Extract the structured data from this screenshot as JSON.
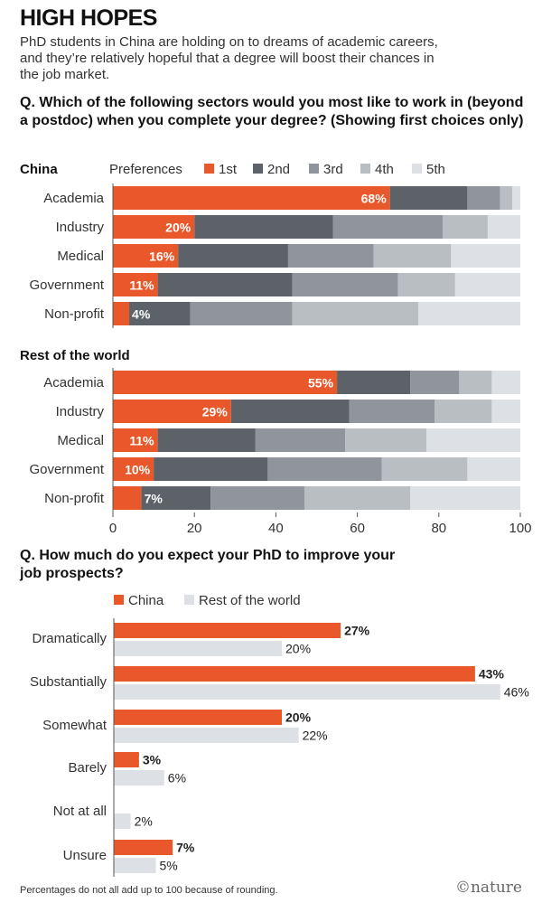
{
  "title": "HIGH HOPES",
  "subtitle": "PhD students in China are holding on to dreams of academic careers, and they’re relatively hopeful that a degree will boost their chances in the job market.",
  "question1": "Q. Which of the following sectors would you most like to work in (beyond a postdoc) when you complete your degree? (Showing first choices only)",
  "question2": "Q. How much do you expect your PhD to improve your job prospects?",
  "footnote": "Percentages do not all add up to 100 because of rounding.",
  "brand": "©nature",
  "colors": {
    "1st": "#e8582a",
    "2nd": "#5d6268",
    "3rd": "#8f959b",
    "4th": "#b9bec3",
    "5th": "#dde1e6",
    "china": "#e8582a",
    "rest": "#dde1e6"
  },
  "chart_data": [
    {
      "type": "bar",
      "orientation": "horizontal",
      "stacked": true,
      "panel": "China",
      "legend_title": "Preferences",
      "categories": [
        "Academia",
        "Industry",
        "Medical",
        "Government",
        "Non-profit"
      ],
      "series": [
        {
          "name": "1st",
          "values": [
            68,
            20,
            16,
            11,
            4
          ]
        },
        {
          "name": "2nd",
          "values": [
            19,
            34,
            27,
            33,
            15
          ]
        },
        {
          "name": "3rd",
          "values": [
            8,
            27,
            21,
            26,
            25
          ]
        },
        {
          "name": "4th",
          "values": [
            3,
            11,
            19,
            14,
            31
          ]
        },
        {
          "name": "5th",
          "values": [
            2,
            8,
            17,
            16,
            25
          ]
        }
      ],
      "data_labels": [
        "68%",
        "20%",
        "16%",
        "11%",
        "4%"
      ],
      "xlim": [
        0,
        100
      ]
    },
    {
      "type": "bar",
      "orientation": "horizontal",
      "stacked": true,
      "panel": "Rest of the world",
      "categories": [
        "Academia",
        "Industry",
        "Medical",
        "Government",
        "Non-profit"
      ],
      "series": [
        {
          "name": "1st",
          "values": [
            55,
            29,
            11,
            10,
            7
          ]
        },
        {
          "name": "2nd",
          "values": [
            18,
            29,
            24,
            28,
            17
          ]
        },
        {
          "name": "3rd",
          "values": [
            12,
            21,
            22,
            28,
            23
          ]
        },
        {
          "name": "4th",
          "values": [
            8,
            14,
            20,
            21,
            26
          ]
        },
        {
          "name": "5th",
          "values": [
            7,
            7,
            23,
            13,
            27
          ]
        }
      ],
      "data_labels": [
        "55%",
        "29%",
        "11%",
        "10%",
        "7%"
      ],
      "xlim": [
        0,
        100
      ],
      "xticks": [
        0,
        20,
        40,
        60,
        80,
        100
      ]
    },
    {
      "type": "bar",
      "orientation": "horizontal",
      "grouped": true,
      "categories": [
        "Dramatically",
        "Substantially",
        "Somewhat",
        "Barely",
        "Not at all",
        "Unsure"
      ],
      "series": [
        {
          "name": "China",
          "values": [
            27,
            43,
            20,
            3,
            0,
            7
          ],
          "labels": [
            "27%",
            "43%",
            "20%",
            "3%",
            "",
            "7%"
          ]
        },
        {
          "name": "Rest of the world",
          "values": [
            20,
            46,
            22,
            6,
            2,
            5
          ],
          "labels": [
            "20%",
            "46%",
            "22%",
            "6%",
            "2%",
            "5%"
          ]
        }
      ]
    }
  ]
}
